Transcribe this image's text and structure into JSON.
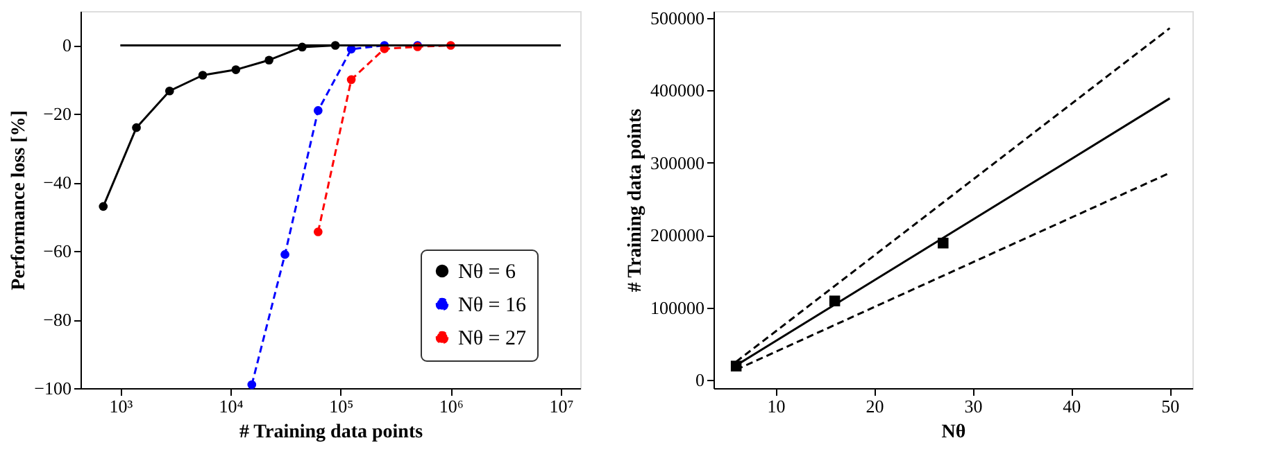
{
  "chart_data": [
    {
      "type": "line",
      "xlabel": "# Training data points",
      "ylabel": "Performance loss [%]",
      "log": "x",
      "xlim": [
        435,
        15000000
      ],
      "ylim": [
        -100,
        10
      ],
      "xticks": [
        {
          "value": 1000,
          "label": "10³"
        },
        {
          "value": 10000,
          "label": "10⁴"
        },
        {
          "value": 100000,
          "label": "10⁵"
        },
        {
          "value": 1000000,
          "label": "10⁶"
        },
        {
          "value": 10000000,
          "label": "10⁷"
        }
      ],
      "yticks": [
        0,
        -20,
        -40,
        -60,
        -80,
        -100
      ],
      "grid": false,
      "legend": "bottom right",
      "series": [
        {
          "name": "Nθ = 6",
          "color": "#000000",
          "line_style": "solid",
          "marker": "circle",
          "x": [
            700,
            1400,
            2800,
            5600,
            11200,
            22400,
            44800,
            89600
          ],
          "values": [
            -47,
            -24,
            -13.3,
            -8.7,
            -7.1,
            -4.3,
            -0.5,
            0
          ]
        },
        {
          "name": "Nθ = 16",
          "color": "#0000ff",
          "line_style": "dashed",
          "marker": "circle",
          "x": [
            15625,
            31250,
            62500,
            125000,
            250000,
            500000
          ],
          "values": [
            -99,
            -61,
            -19,
            -1.1,
            0,
            0
          ]
        },
        {
          "name": "Nθ = 27",
          "color": "#ff0000",
          "line_style": "dashed",
          "marker": "circle",
          "x": [
            62500,
            125000,
            250000,
            500000,
            1000000
          ],
          "values": [
            -54.4,
            -10,
            -1,
            -0.4,
            0
          ]
        },
        {
          "color": "#000000",
          "line_style": "solid",
          "marker": "none",
          "x": [
            1000,
            10000000
          ],
          "values": [
            0,
            0
          ]
        }
      ]
    },
    {
      "type": "line",
      "xlabel": "Nθ",
      "ylabel": "# Training data points",
      "xlim": [
        3.7,
        52.3
      ],
      "ylim": [
        -11500,
        509600
      ],
      "xticks": [
        10,
        20,
        30,
        40,
        50
      ],
      "yticks": [
        0,
        100000,
        200000,
        300000,
        400000,
        500000
      ],
      "grid": false,
      "legend": false,
      "series": [
        {
          "type": "scatter",
          "color": "#000000",
          "marker": "square",
          "x": [
            6,
            16,
            27
          ],
          "values": [
            19000,
            109000,
            189000
          ]
        },
        {
          "color": "#000000",
          "line_style": "solid",
          "marker": "none",
          "x": [
            6,
            50
          ],
          "values": [
            20000,
            389000
          ]
        },
        {
          "color": "#000000",
          "line_style": "dashed",
          "marker": "none",
          "x": [
            6,
            50
          ],
          "values": [
            25000,
            486000
          ]
        },
        {
          "color": "#000000",
          "line_style": "dashed",
          "marker": "none",
          "x": [
            6,
            50
          ],
          "values": [
            14000,
            286000
          ]
        }
      ]
    }
  ]
}
